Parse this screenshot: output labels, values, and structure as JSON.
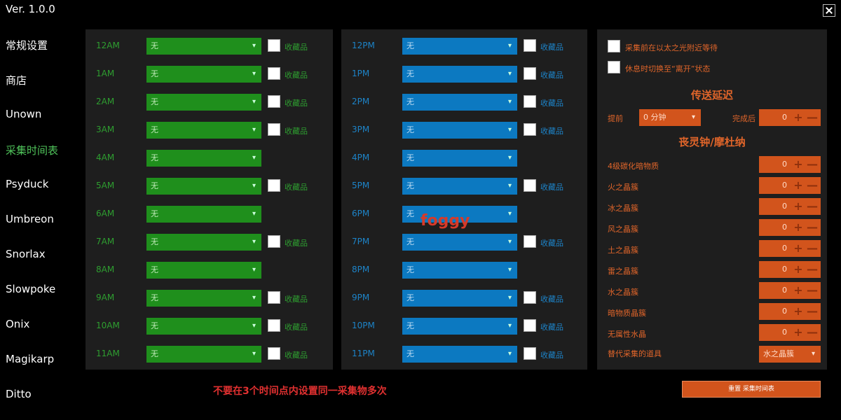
{
  "version": "Ver. 1.0.0",
  "sidebar": {
    "items": [
      {
        "label": "常规设置",
        "active": false
      },
      {
        "label": "商店",
        "active": false
      },
      {
        "label": "Unown",
        "active": false
      },
      {
        "label": "采集时间表",
        "active": true
      },
      {
        "label": "Psyduck",
        "active": false
      },
      {
        "label": "Umbreon",
        "active": false
      },
      {
        "label": "Snorlax",
        "active": false
      },
      {
        "label": "Slowpoke",
        "active": false
      },
      {
        "label": "Onix",
        "active": false
      },
      {
        "label": "Magikarp",
        "active": false
      },
      {
        "label": "Ditto",
        "active": false
      }
    ]
  },
  "am_schedule": [
    {
      "time": "12AM",
      "value": "无",
      "has_collectible": true
    },
    {
      "time": "1AM",
      "value": "无",
      "has_collectible": true
    },
    {
      "time": "2AM",
      "value": "无",
      "has_collectible": true
    },
    {
      "time": "3AM",
      "value": "无",
      "has_collectible": true
    },
    {
      "time": "4AM",
      "value": "无",
      "has_collectible": false
    },
    {
      "time": "5AM",
      "value": "无",
      "has_collectible": true
    },
    {
      "time": "6AM",
      "value": "无",
      "has_collectible": false
    },
    {
      "time": "7AM",
      "value": "无",
      "has_collectible": true
    },
    {
      "time": "8AM",
      "value": "无",
      "has_collectible": false
    },
    {
      "time": "9AM",
      "value": "无",
      "has_collectible": true
    },
    {
      "time": "10AM",
      "value": "无",
      "has_collectible": true
    },
    {
      "time": "11AM",
      "value": "无",
      "has_collectible": true
    }
  ],
  "pm_schedule": [
    {
      "time": "12PM",
      "value": "无",
      "has_collectible": true
    },
    {
      "time": "1PM",
      "value": "无",
      "has_collectible": true
    },
    {
      "time": "2PM",
      "value": "无",
      "has_collectible": true
    },
    {
      "time": "3PM",
      "value": "无",
      "has_collectible": true
    },
    {
      "time": "4PM",
      "value": "无",
      "has_collectible": false
    },
    {
      "time": "5PM",
      "value": "无",
      "has_collectible": true
    },
    {
      "time": "6PM",
      "value": "无",
      "has_collectible": false
    },
    {
      "time": "7PM",
      "value": "无",
      "has_collectible": true
    },
    {
      "time": "8PM",
      "value": "无",
      "has_collectible": false
    },
    {
      "time": "9PM",
      "value": "无",
      "has_collectible": true
    },
    {
      "time": "10PM",
      "value": "无",
      "has_collectible": true
    },
    {
      "time": "11PM",
      "value": "无",
      "has_collectible": true
    }
  ],
  "collectible_label": "收藏品",
  "right": {
    "opt1": "采集前在以太之光附近等待",
    "opt2": "休息时切换至“离开”状态",
    "teleport_heading": "传送延迟",
    "before_label": "提前",
    "before_value": "0 分钟",
    "after_label": "完成后",
    "after_value": "0",
    "items_heading": "丧灵钟/摩杜纳",
    "items": [
      {
        "label": "4级碳化暗物质",
        "value": "0"
      },
      {
        "label": "火之晶簇",
        "value": "0"
      },
      {
        "label": "冰之晶簇",
        "value": "0"
      },
      {
        "label": "风之晶簇",
        "value": "0"
      },
      {
        "label": "土之晶簇",
        "value": "0"
      },
      {
        "label": "雷之晶簇",
        "value": "0"
      },
      {
        "label": "水之晶簇",
        "value": "0"
      },
      {
        "label": "暗物质晶簇",
        "value": "0"
      },
      {
        "label": "无属性水晶",
        "value": "0"
      }
    ],
    "replace_label": "替代采集的道具",
    "replace_value": "水之晶簇"
  },
  "reset_button": "重置 采集时间表",
  "warning": "不要在3个时间点内设置同一采集物多次",
  "watermark": "foggy",
  "colors": {
    "green": "#1f8f1c",
    "blue": "#0c79c1",
    "orange": "#d2541c",
    "panel": "#1e1e1e"
  },
  "icons": {
    "close": "close-icon",
    "dropdown": "chevron-down-icon",
    "plus": "plus-icon",
    "minus": "minus-icon"
  }
}
